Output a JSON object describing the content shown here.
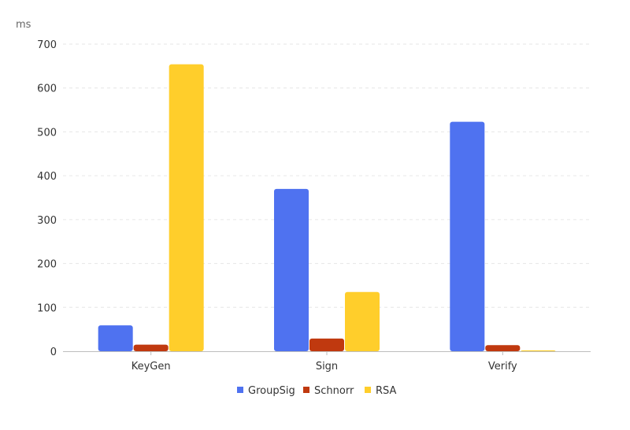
{
  "chart_data": {
    "type": "bar",
    "unit_label": "ms",
    "categories": [
      "KeyGen",
      "Sign",
      "Verify"
    ],
    "series": [
      {
        "name": "GroupSig",
        "color": "#4F72F0",
        "values": [
          59,
          370,
          523
        ]
      },
      {
        "name": "Schnorr",
        "color": "#C0390F",
        "values": [
          15,
          29,
          14
        ]
      },
      {
        "name": "RSA",
        "color": "#FFCE2B",
        "values": [
          654,
          135,
          2
        ]
      }
    ],
    "ylim": [
      0,
      700
    ],
    "yticks": [
      0,
      100,
      200,
      300,
      400,
      500,
      600,
      700
    ],
    "grid": true,
    "legend_position": "bottom"
  }
}
